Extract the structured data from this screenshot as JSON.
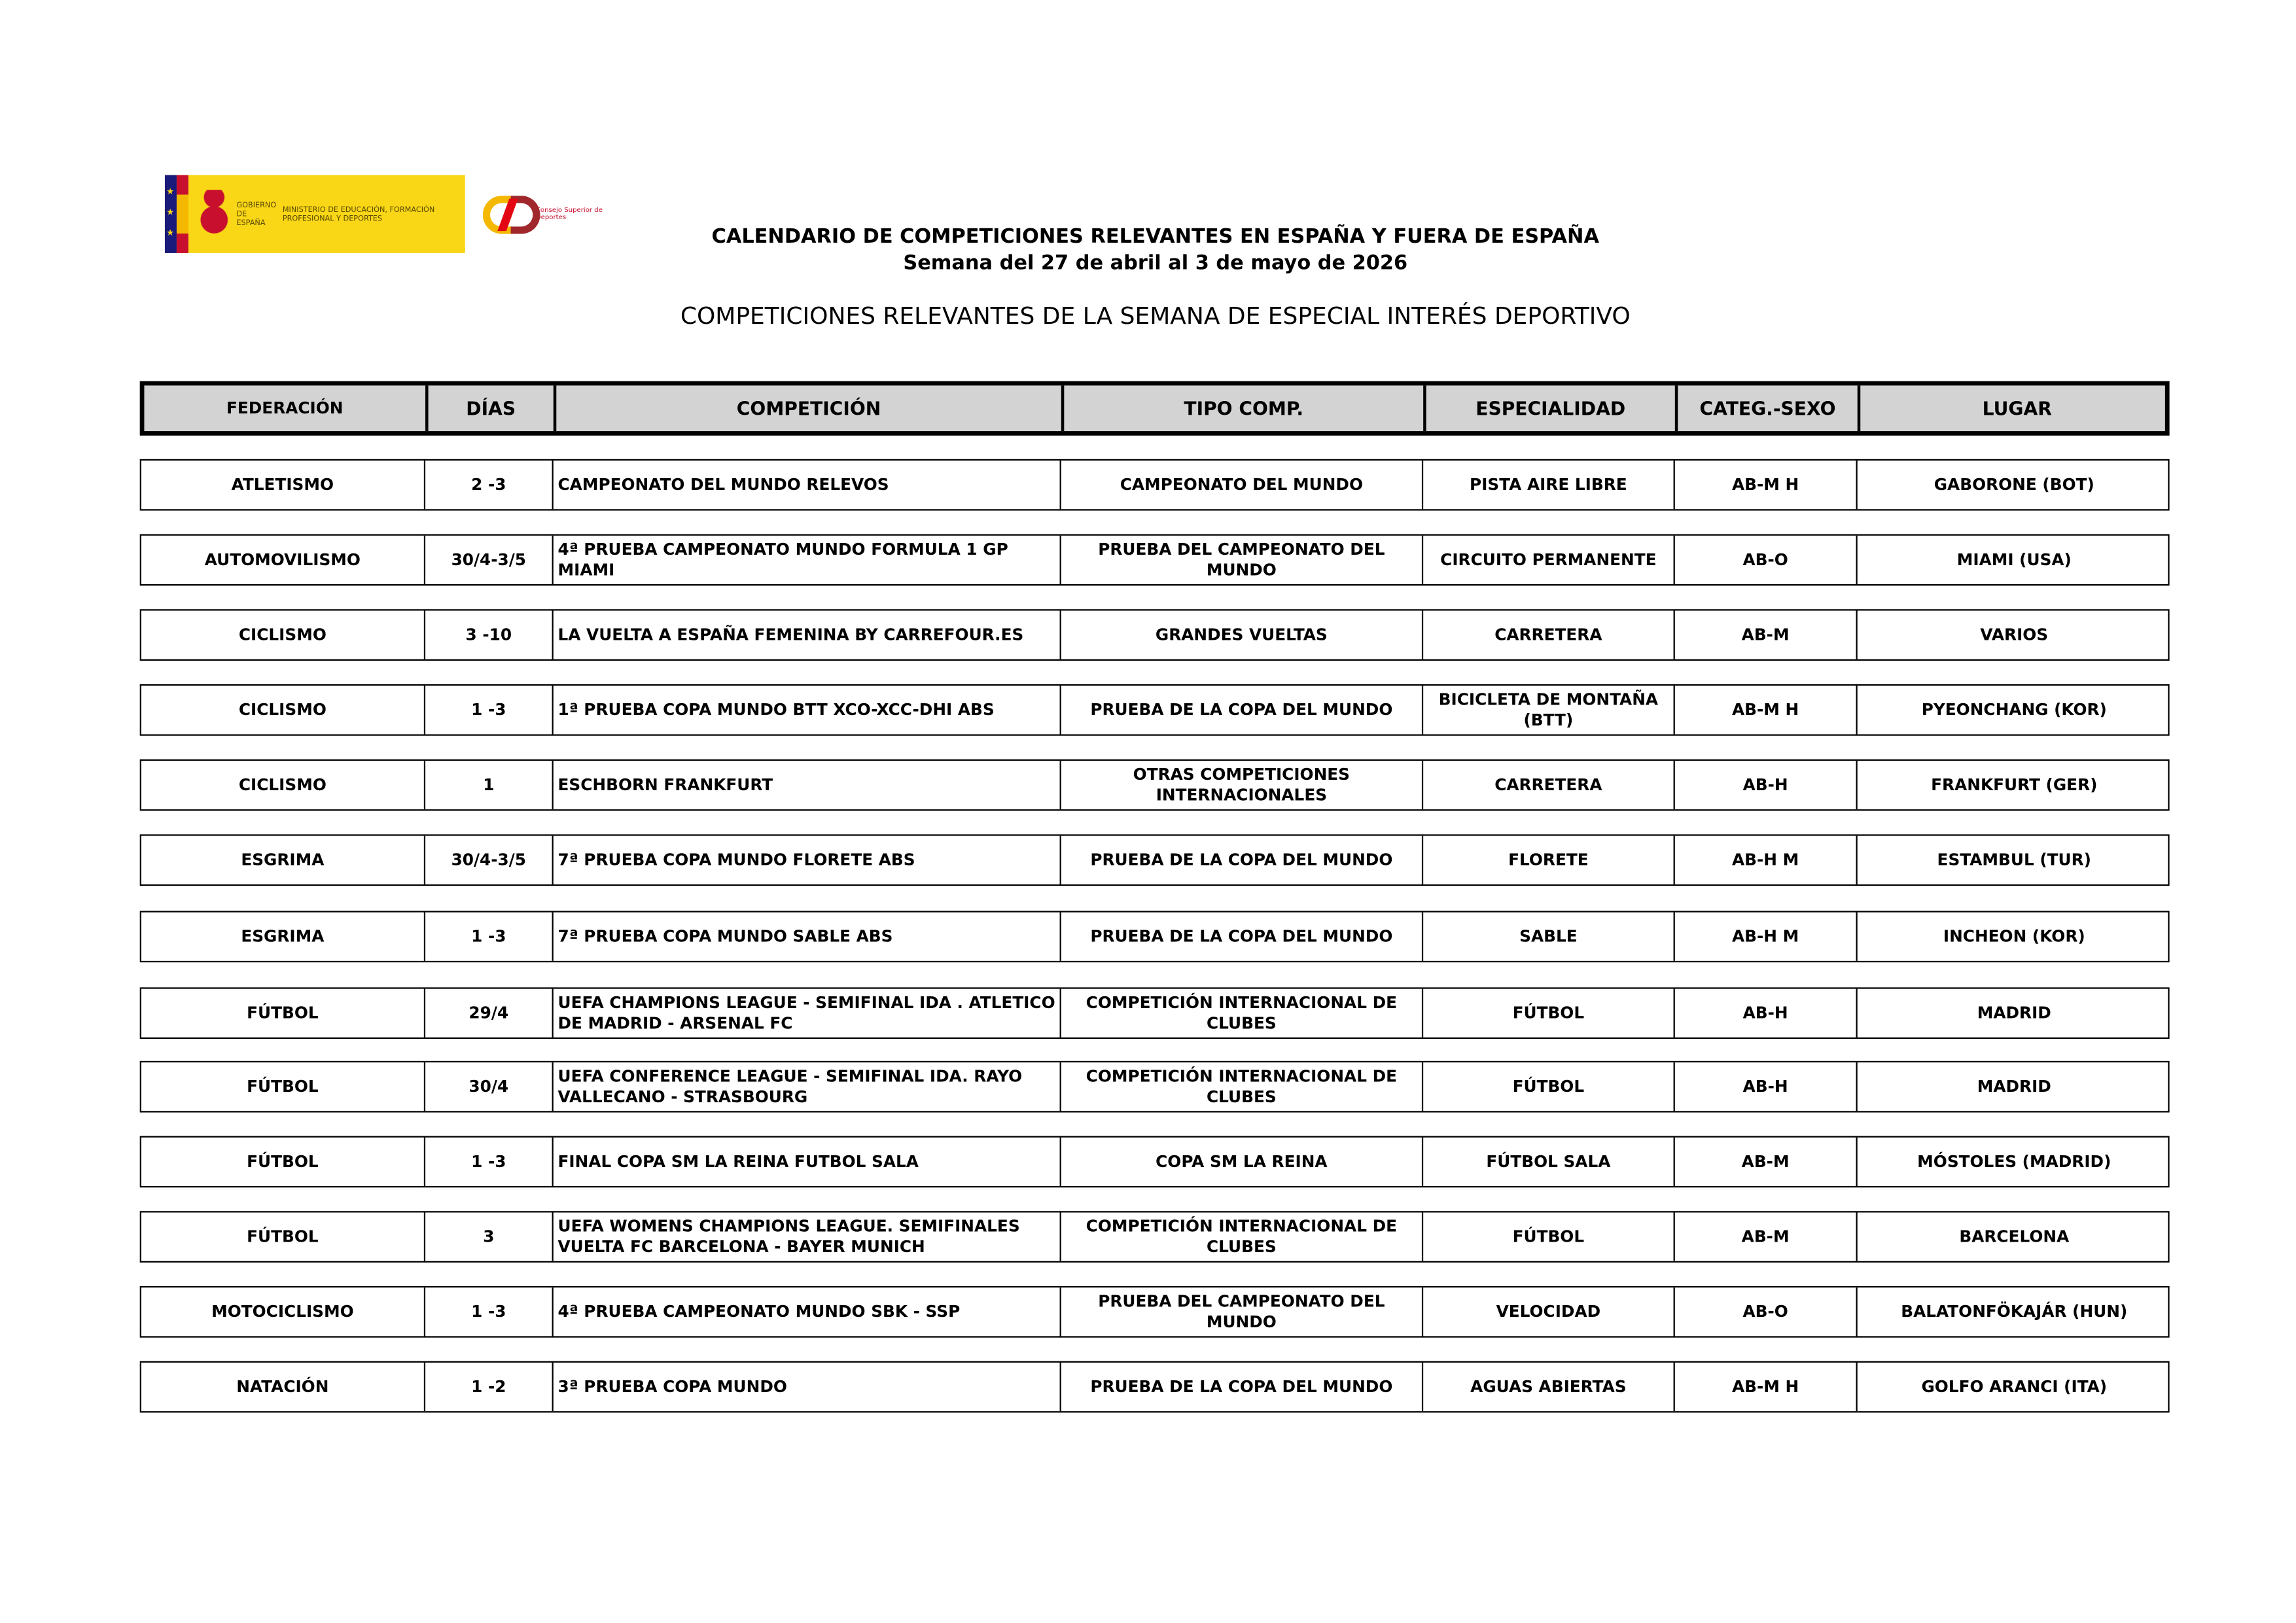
{
  "logos": {
    "gobierno": "GOBIERNO DE ESPAÑA",
    "ministerio": "MINISTERIO DE EDUCACIÓN, FORMACIÓN PROFESIONAL Y DEPORTES",
    "csd": "Consejo Superior de Deportes"
  },
  "header": {
    "title": "CALENDARIO DE COMPETICIONES RELEVANTES EN ESPAÑA Y FUERA DE ESPAÑA",
    "week": "Semana del 27 de abril al 3 de mayo de 2026",
    "subtitle": "COMPETICIONES RELEVANTES DE LA SEMANA DE ESPECIAL INTERÉS DEPORTIVO"
  },
  "table": {
    "columns": [
      "FEDERACIÓN",
      "DÍAS",
      "COMPETICIÓN",
      "TIPO COMP.",
      "ESPECIALIDAD",
      "CATEG.-SEXO",
      "LUGAR"
    ],
    "rows": [
      [
        "ATLETISMO",
        "2 -3",
        "CAMPEONATO DEL MUNDO RELEVOS",
        "CAMPEONATO DEL MUNDO",
        "PISTA AIRE LIBRE",
        "AB-M H",
        "GABORONE (BOT)"
      ],
      [
        "AUTOMOVILISMO",
        "30/4-3/5",
        "4ª PRUEBA CAMPEONATO MUNDO FORMULA 1 GP MIAMI",
        "PRUEBA DEL CAMPEONATO DEL MUNDO",
        "CIRCUITO PERMANENTE",
        "AB-O",
        "MIAMI (USA)"
      ],
      [
        "CICLISMO",
        "3 -10",
        "LA VUELTA A ESPAÑA FEMENINA BY CARREFOUR.ES",
        "GRANDES VUELTAS",
        "CARRETERA",
        "AB-M",
        "VARIOS"
      ],
      [
        "CICLISMO",
        "1 -3",
        "1ª PRUEBA COPA MUNDO BTT XCO-XCC-DHI ABS",
        "PRUEBA DE LA COPA DEL MUNDO",
        "BICICLETA DE MONTAÑA (BTT)",
        "AB-M H",
        "PYEONCHANG (KOR)"
      ],
      [
        "CICLISMO",
        "1",
        "ESCHBORN FRANKFURT",
        "OTRAS COMPETICIONES INTERNACIONALES",
        "CARRETERA",
        "AB-H",
        "FRANKFURT (GER)"
      ],
      [
        "ESGRIMA",
        "30/4-3/5",
        "7ª PRUEBA COPA MUNDO FLORETE ABS",
        "PRUEBA DE LA COPA DEL MUNDO",
        "FLORETE",
        "AB-H M",
        "ESTAMBUL (TUR)"
      ],
      [
        "ESGRIMA",
        "1 -3",
        "7ª PRUEBA COPA MUNDO SABLE ABS",
        "PRUEBA DE LA COPA DEL MUNDO",
        "SABLE",
        "AB-H M",
        "INCHEON (KOR)"
      ],
      [
        "FÚTBOL",
        "29/4",
        "UEFA CHAMPIONS LEAGUE - SEMIFINAL IDA . ATLETICO DE MADRID - ARSENAL FC",
        "COMPETICIÓN INTERNACIONAL DE CLUBES",
        "FÚTBOL",
        "AB-H",
        "MADRID"
      ],
      [
        "FÚTBOL",
        "30/4",
        "UEFA CONFERENCE LEAGUE - SEMIFINAL IDA. RAYO VALLECANO - STRASBOURG",
        "COMPETICIÓN INTERNACIONAL DE CLUBES",
        "FÚTBOL",
        "AB-H",
        "MADRID"
      ],
      [
        "FÚTBOL",
        "1 -3",
        "FINAL COPA SM LA REINA FUTBOL SALA",
        "COPA SM LA REINA",
        "FÚTBOL SALA",
        "AB-M",
        "MÓSTOLES (MADRID)"
      ],
      [
        "FÚTBOL",
        "3",
        "UEFA WOMENS CHAMPIONS LEAGUE. SEMIFINALES VUELTA FC BARCELONA - BAYER MUNICH",
        "COMPETICIÓN INTERNACIONAL DE CLUBES",
        "FÚTBOL",
        "AB-M",
        "BARCELONA"
      ],
      [
        "MOTOCICLISMO",
        "1 -3",
        "4ª PRUEBA CAMPEONATO MUNDO SBK - SSP",
        "PRUEBA DEL CAMPEONATO DEL MUNDO",
        "VELOCIDAD",
        "AB-O",
        "BALATONFÖKAJÁR (HUN)"
      ],
      [
        "NATACIÓN",
        "1 -2",
        "3ª PRUEBA COPA MUNDO",
        "PRUEBA DE LA COPA DEL MUNDO",
        "AGUAS ABIERTAS",
        "AB-M H",
        "GOLFO ARANCI (ITA)"
      ]
    ]
  },
  "colors": {
    "header_bg": "#d3d3d3",
    "logo_yellow": "#f9d616",
    "csd_red": "#e30613"
  }
}
